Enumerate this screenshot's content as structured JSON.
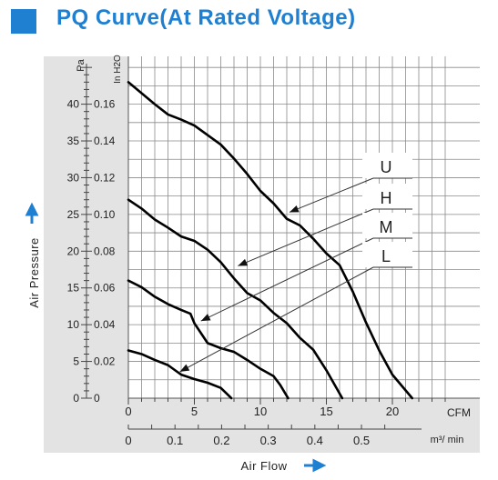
{
  "title": "PQ Curve(At Rated Voltage)",
  "colors": {
    "accent": "#1f7fd0",
    "panel": "#e3e3e3",
    "grid": "#8a8a8a",
    "curve": "#000000"
  },
  "chart_data": {
    "type": "line",
    "title": "PQ Curve(At Rated Voltage)",
    "xlabel": "Air Flow",
    "ylabel": "Air Pressure",
    "x_units": {
      "primary": "CFM",
      "secondary": "m³/ min"
    },
    "y_units": {
      "primary": "Pa",
      "secondary": "In H2O"
    },
    "x_ticks_cfm": [
      0,
      5,
      10,
      15,
      20
    ],
    "x_tick_labels_cfm": [
      "0",
      "5",
      "10",
      "15",
      "20"
    ],
    "x_ticks_m3min": [
      0,
      0.1,
      0.2,
      0.3,
      0.4,
      0.5
    ],
    "x_tick_labels_m3min": [
      "0",
      "0.1",
      "0.2",
      "0.3",
      "0.4",
      "0.5"
    ],
    "y_ticks_pa": [
      0,
      5,
      10,
      15,
      20,
      25,
      30,
      35,
      40
    ],
    "y_tick_labels_pa": [
      "0",
      "5",
      "10",
      "15",
      "20",
      "25",
      "30",
      "35",
      "40"
    ],
    "y_ticks_inh2o": [
      0,
      0.02,
      0.04,
      0.06,
      0.08,
      0.1,
      0.12,
      0.14,
      0.16
    ],
    "y_tick_labels_inh2o": [
      "0",
      "0.02",
      "0.04",
      "0.06",
      "0.08",
      "0.10",
      "0.12",
      "0.14",
      "0.16"
    ],
    "xlim_cfm": [
      0,
      24
    ],
    "ylim_pa": [
      0,
      47
    ],
    "grid": true,
    "series": [
      {
        "name": "U",
        "x": [
          0,
          1,
          2,
          3,
          4,
          5,
          6,
          7,
          8,
          9,
          10,
          11,
          12,
          13,
          14,
          15,
          16,
          17,
          18,
          19,
          20,
          21.5
        ],
        "y": [
          43,
          41.5,
          40,
          38.6,
          37.9,
          37.1,
          35.8,
          34.5,
          32.6,
          30.5,
          28.2,
          26.5,
          24.4,
          23.5,
          21.7,
          19.7,
          18.1,
          14.5,
          10.3,
          6.5,
          3.2,
          0
        ]
      },
      {
        "name": "H",
        "x": [
          0,
          1,
          2,
          3,
          4,
          5,
          6,
          7,
          8,
          9,
          10,
          11,
          12,
          13,
          14,
          15,
          16.2
        ],
        "y": [
          27,
          25.8,
          24.3,
          23.2,
          22,
          21.4,
          20.2,
          18.5,
          16.3,
          14.3,
          13.3,
          11.6,
          10.2,
          8.2,
          6.6,
          3.8,
          0
        ]
      },
      {
        "name": "M",
        "x": [
          0,
          1,
          2,
          3,
          4,
          4.7,
          5,
          6,
          7,
          8,
          9,
          10,
          11,
          11.5,
          12.1
        ],
        "y": [
          16,
          15.1,
          13.8,
          12.8,
          12,
          11.5,
          10.2,
          7.5,
          6.8,
          6.3,
          5.2,
          4,
          3,
          1.8,
          0
        ]
      },
      {
        "name": "L",
        "x": [
          0,
          1,
          2,
          3,
          4,
          5,
          6,
          7,
          7.8
        ],
        "y": [
          6.5,
          6,
          5.2,
          4.5,
          3.2,
          2.6,
          2.1,
          1.4,
          0
        ]
      }
    ],
    "annotations": [
      "U",
      "H",
      "M",
      "L"
    ]
  }
}
